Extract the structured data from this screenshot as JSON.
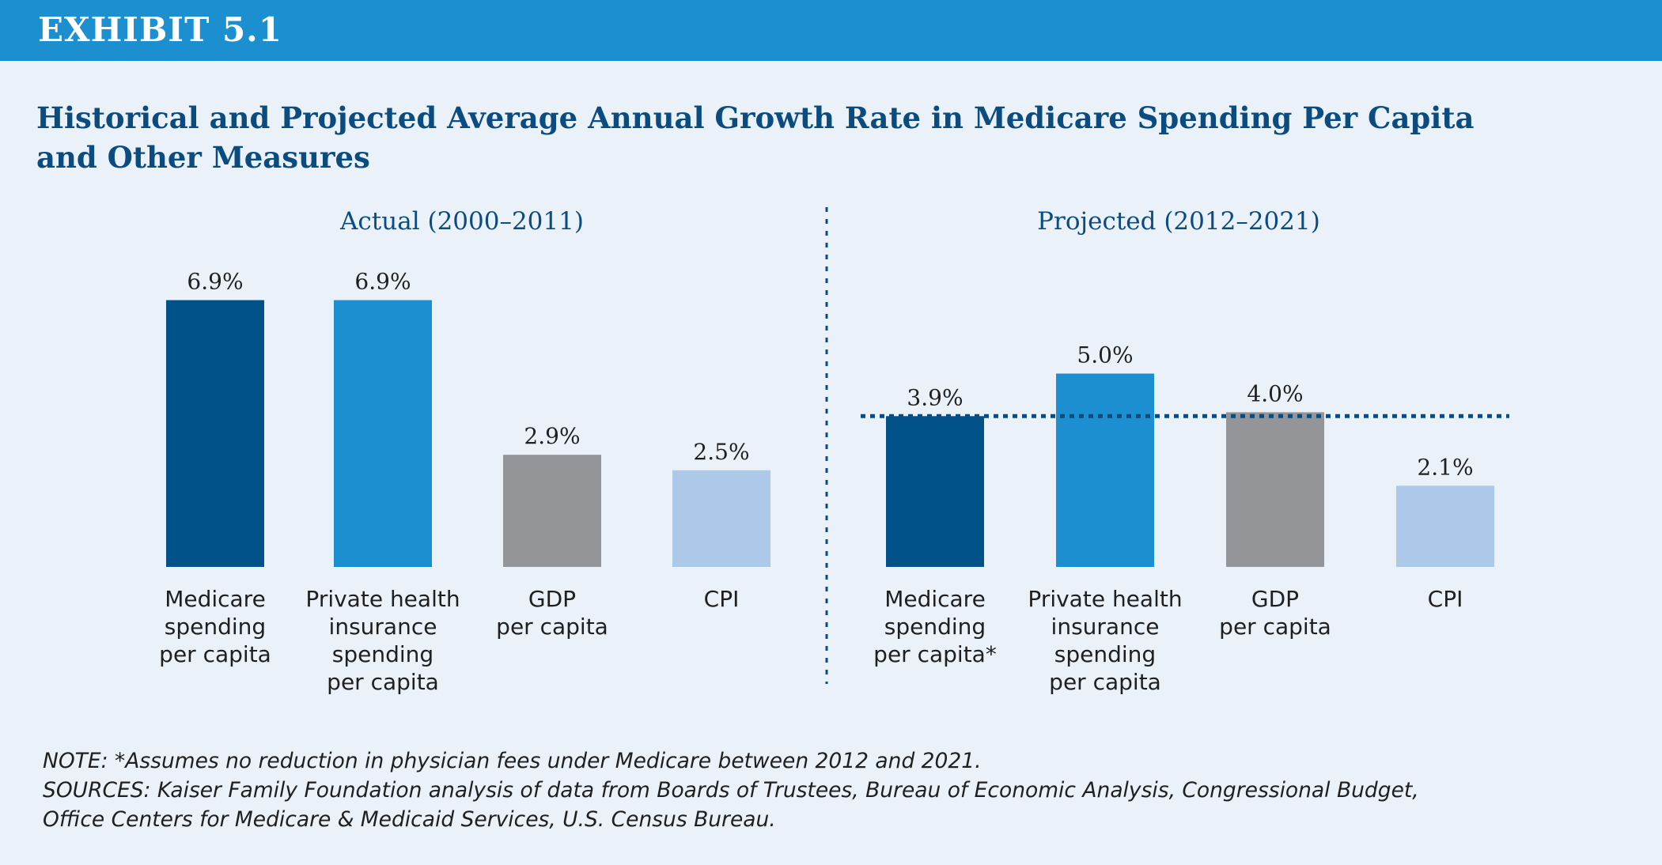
{
  "header": {
    "label": "EXHIBIT 5.1"
  },
  "title_lines": [
    "Historical and Projected Average Annual Growth Rate in Medicare Spending Per Capita",
    "and Other Measures"
  ],
  "colors": {
    "header_bar": "#1c8fd0",
    "background": "#eaf1f9",
    "title": "#0b4c80",
    "medicare": "#02528a",
    "private_insurance": "#1c8fd0",
    "gdp": "#939598",
    "cpi": "#adc9e9",
    "reference_line": "#0b4c80"
  },
  "chart_data": {
    "type": "bar",
    "panels": [
      {
        "title": "Actual (2000–2011)",
        "categories": [
          [
            "Medicare",
            "spending",
            "per capita"
          ],
          [
            "Private health",
            "insurance",
            "spending",
            "per capita"
          ],
          [
            "GDP",
            "per capita"
          ],
          [
            "CPI"
          ]
        ],
        "values": [
          6.9,
          6.9,
          2.9,
          2.5
        ],
        "value_labels": [
          "6.9%",
          "6.9%",
          "2.9%",
          "2.5%"
        ],
        "reference_line": null
      },
      {
        "title": "Projected (2012–2021)",
        "categories": [
          [
            "Medicare",
            "spending",
            "per capita*"
          ],
          [
            "Private health",
            "insurance",
            "spending",
            "per capita"
          ],
          [
            "GDP",
            "per capita"
          ],
          [
            "CPI"
          ]
        ],
        "values": [
          3.9,
          5.0,
          4.0,
          2.1
        ],
        "value_labels": [
          "3.9%",
          "5.0%",
          "4.0%",
          "2.1%"
        ],
        "reference_line": 3.9
      }
    ],
    "series_colors": [
      "#02528a",
      "#1c8fd0",
      "#939598",
      "#adc9e9"
    ],
    "ylim": [
      0,
      7
    ],
    "grid": false,
    "panel_divider": "dotted vertical line"
  },
  "footnotes": {
    "note": "NOTE:  *Assumes no reduction in physician fees under Medicare between 2012 and 2021.",
    "sources_line1": "SOURCES:  Kaiser Family Foundation analysis of data from Boards of Trustees, Bureau of Economic Analysis, Congressional Budget,",
    "sources_line2": "Office Centers for Medicare & Medicaid Services, U.S. Census Bureau."
  }
}
